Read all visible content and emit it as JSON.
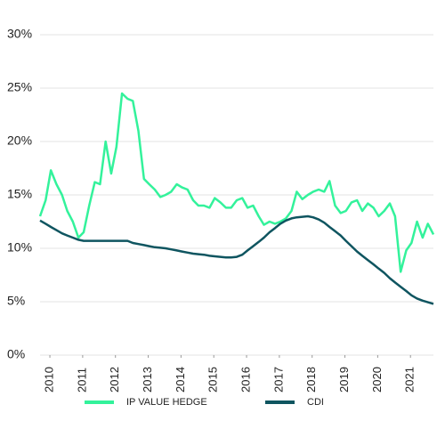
{
  "chart_data": {
    "type": "line",
    "x": [
      2009.7,
      2009.87,
      2010.03,
      2010.2,
      2010.37,
      2010.53,
      2010.7,
      2010.87,
      2011.03,
      2011.2,
      2011.37,
      2011.53,
      2011.7,
      2011.87,
      2012.03,
      2012.2,
      2012.37,
      2012.53,
      2012.7,
      2012.87,
      2013.03,
      2013.2,
      2013.37,
      2013.53,
      2013.7,
      2013.87,
      2014.03,
      2014.2,
      2014.37,
      2014.53,
      2014.7,
      2014.87,
      2015.03,
      2015.2,
      2015.37,
      2015.53,
      2015.7,
      2015.87,
      2016.03,
      2016.2,
      2016.37,
      2016.53,
      2016.7,
      2016.87,
      2017.03,
      2017.2,
      2017.37,
      2017.53,
      2017.7,
      2017.87,
      2018.03,
      2018.2,
      2018.37,
      2018.53,
      2018.7,
      2018.87,
      2019.03,
      2019.2,
      2019.37,
      2019.53,
      2019.7,
      2019.87,
      2020.03,
      2020.2,
      2020.37,
      2020.53,
      2020.7,
      2020.87,
      2021.03,
      2021.2,
      2021.37,
      2021.53,
      2021.7
    ],
    "series": [
      {
        "name": "IP VALUE HEDGE",
        "color": "#33f29b",
        "values": [
          13,
          14.5,
          17.3,
          16,
          15,
          13.5,
          12.5,
          11,
          11.5,
          14,
          16.2,
          16,
          20,
          17,
          19.5,
          24.5,
          24,
          23.8,
          21,
          16.5,
          16,
          15.5,
          14.8,
          15,
          15.3,
          16,
          15.7,
          15.5,
          14.5,
          14,
          14,
          13.8,
          14.7,
          14.3,
          13.8,
          13.8,
          14.5,
          14.7,
          13.8,
          14,
          13,
          12.2,
          12.5,
          12.3,
          12.5,
          12.8,
          13.5,
          15.3,
          14.6,
          15,
          15.3,
          15.5,
          15.3,
          16.3,
          14,
          13.3,
          13.5,
          14.3,
          14.5,
          13.5,
          14.2,
          13.8,
          13,
          13.5,
          14.2,
          13,
          7.8,
          9.8,
          10.5,
          12.5,
          11,
          12.3,
          11.3
        ]
      },
      {
        "name": "CDI",
        "color": "#0f5560",
        "values": [
          12.6,
          12.3,
          12,
          11.7,
          11.4,
          11.2,
          11,
          10.8,
          10.7,
          10.7,
          10.7,
          10.7,
          10.7,
          10.7,
          10.7,
          10.7,
          10.7,
          10.5,
          10.4,
          10.3,
          10.2,
          10.1,
          10.05,
          10,
          9.9,
          9.8,
          9.7,
          9.6,
          9.5,
          9.45,
          9.4,
          9.3,
          9.25,
          9.2,
          9.15,
          9.15,
          9.2,
          9.4,
          9.8,
          10.2,
          10.6,
          11,
          11.5,
          11.9,
          12.3,
          12.6,
          12.8,
          12.9,
          12.95,
          13,
          12.9,
          12.7,
          12.4,
          12,
          11.6,
          11.2,
          10.7,
          10.2,
          9.7,
          9.3,
          8.9,
          8.5,
          8.1,
          7.7,
          7.2,
          6.8,
          6.4,
          6,
          5.6,
          5.3,
          5.1,
          4.95,
          4.8
        ]
      }
    ],
    "xlim": [
      2009.7,
      2021.7
    ],
    "xticks": [
      2010,
      2011,
      2012,
      2013,
      2014,
      2015,
      2016,
      2017,
      2018,
      2019,
      2020,
      2021
    ],
    "ylim": [
      0,
      30
    ],
    "yticks": [
      {
        "value": 0,
        "label": "0%"
      },
      {
        "value": 5,
        "label": "5%"
      },
      {
        "value": 10,
        "label": "10%"
      },
      {
        "value": 15,
        "label": "15%"
      },
      {
        "value": 20,
        "label": "20%"
      },
      {
        "value": 25,
        "label": "25%"
      },
      {
        "value": 30,
        "label": "30%"
      }
    ],
    "grid": true,
    "legend": "bottom"
  }
}
